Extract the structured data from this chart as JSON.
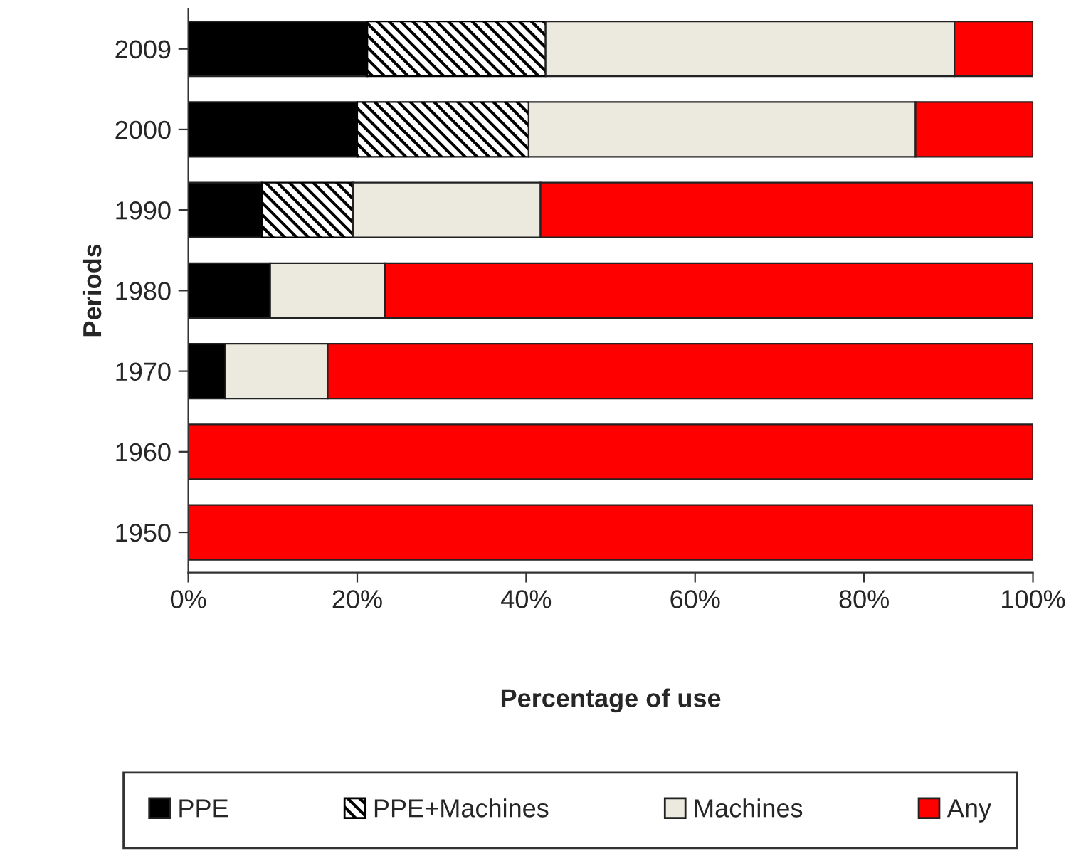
{
  "chart_data": {
    "type": "bar",
    "orientation": "horizontal",
    "stacked": true,
    "xlabel": "Percentage of use",
    "ylabel": "Periods",
    "categories": [
      "2009",
      "2000",
      "1990",
      "1980",
      "1970",
      "1960",
      "1950"
    ],
    "series": [
      {
        "name": "PPE",
        "color": "#000000",
        "values": [
          21.2,
          20.0,
          8.7,
          9.7,
          4.4,
          0,
          0
        ]
      },
      {
        "name": "PPE+Machines",
        "color": "#000000",
        "values": [
          21.1,
          20.3,
          10.8,
          0,
          0,
          0,
          0
        ]
      },
      {
        "name": "Machines",
        "color": "#ece9de",
        "values": [
          48.4,
          45.8,
          22.2,
          13.6,
          12.1,
          0,
          0
        ]
      },
      {
        "name": "Any",
        "color": "#ff0000",
        "values": [
          9.3,
          13.9,
          58.3,
          76.7,
          83.5,
          100,
          100
        ]
      }
    ],
    "xlim": [
      0,
      100
    ],
    "xticks": [
      {
        "value": 0,
        "label": "0%"
      },
      {
        "value": 20,
        "label": "20%"
      },
      {
        "value": 40,
        "label": "40%"
      },
      {
        "value": 60,
        "label": "60%"
      },
      {
        "value": 80,
        "label": "80%"
      },
      {
        "value": 100,
        "label": "100%"
      }
    ],
    "grid": false,
    "legend": "bottom"
  }
}
